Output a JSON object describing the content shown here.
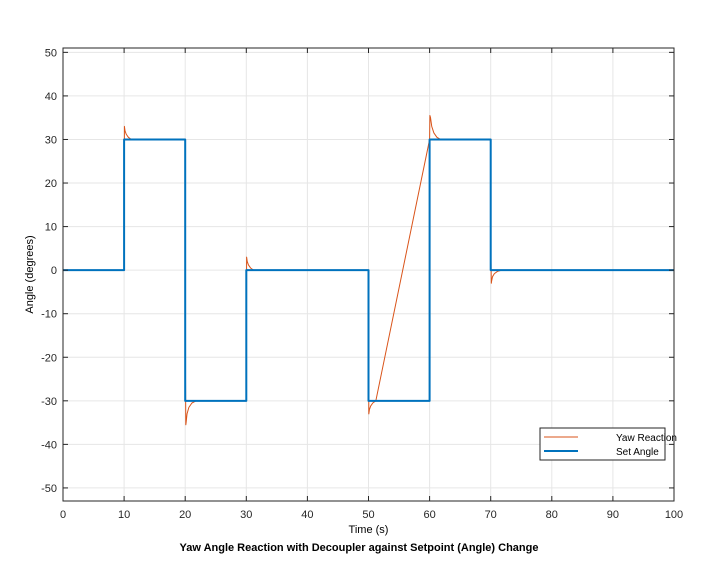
{
  "chart_data": {
    "type": "line",
    "title": "Yaw Angle Reaction with Decoupler against Setpoint (Angle) Change",
    "xlabel": "Time (s)",
    "ylabel": "Angle (degrees)",
    "xlim": [
      0,
      100
    ],
    "ylim": [
      -53,
      51
    ],
    "xticks": [
      0,
      10,
      20,
      30,
      40,
      50,
      60,
      70,
      80,
      90,
      100
    ],
    "yticks": [
      -50,
      -40,
      -30,
      -20,
      -10,
      0,
      10,
      20,
      30,
      40,
      50
    ],
    "grid": true,
    "legend_position": "bottom-right",
    "series": [
      {
        "name": "Yaw Reaction",
        "color": "#d95319",
        "x": [
          0,
          10,
          10.05,
          10.15,
          10.35,
          10.7,
          11.2,
          20,
          20.05,
          20.1,
          20.15,
          20.3,
          20.6,
          21.1,
          21.8,
          30,
          30.05,
          30.15,
          30.35,
          30.7,
          31.2,
          50,
          50.05,
          50.15,
          50.35,
          50.7,
          51.2,
          60,
          60.05,
          60.15,
          60.35,
          60.7,
          61.2,
          61.8,
          70,
          70.05,
          70.1,
          70.15,
          70.3,
          70.6,
          71.1,
          71.8,
          100
        ],
        "values": [
          0,
          0,
          33,
          32,
          31.2,
          30.5,
          30,
          30,
          -25,
          -35.5,
          -35,
          -33,
          -31.5,
          -30.5,
          -30,
          -30,
          3,
          2,
          1.2,
          0.5,
          0,
          0,
          -33,
          -32,
          -31.2,
          -30.5,
          -30,
          30,
          35.5,
          35,
          33,
          31.5,
          30.5,
          30,
          30,
          2,
          -3,
          -2.5,
          -1.5,
          -0.8,
          -0.3,
          0,
          0
        ]
      },
      {
        "name": "Set Angle",
        "color": "#0072bd",
        "x": [
          0,
          10,
          10,
          20,
          20,
          30,
          30,
          50,
          50,
          60,
          60,
          70,
          70,
          100
        ],
        "values": [
          0,
          0,
          30,
          30,
          -30,
          -30,
          0,
          0,
          -30,
          -30,
          30,
          30,
          0,
          0
        ]
      }
    ]
  }
}
